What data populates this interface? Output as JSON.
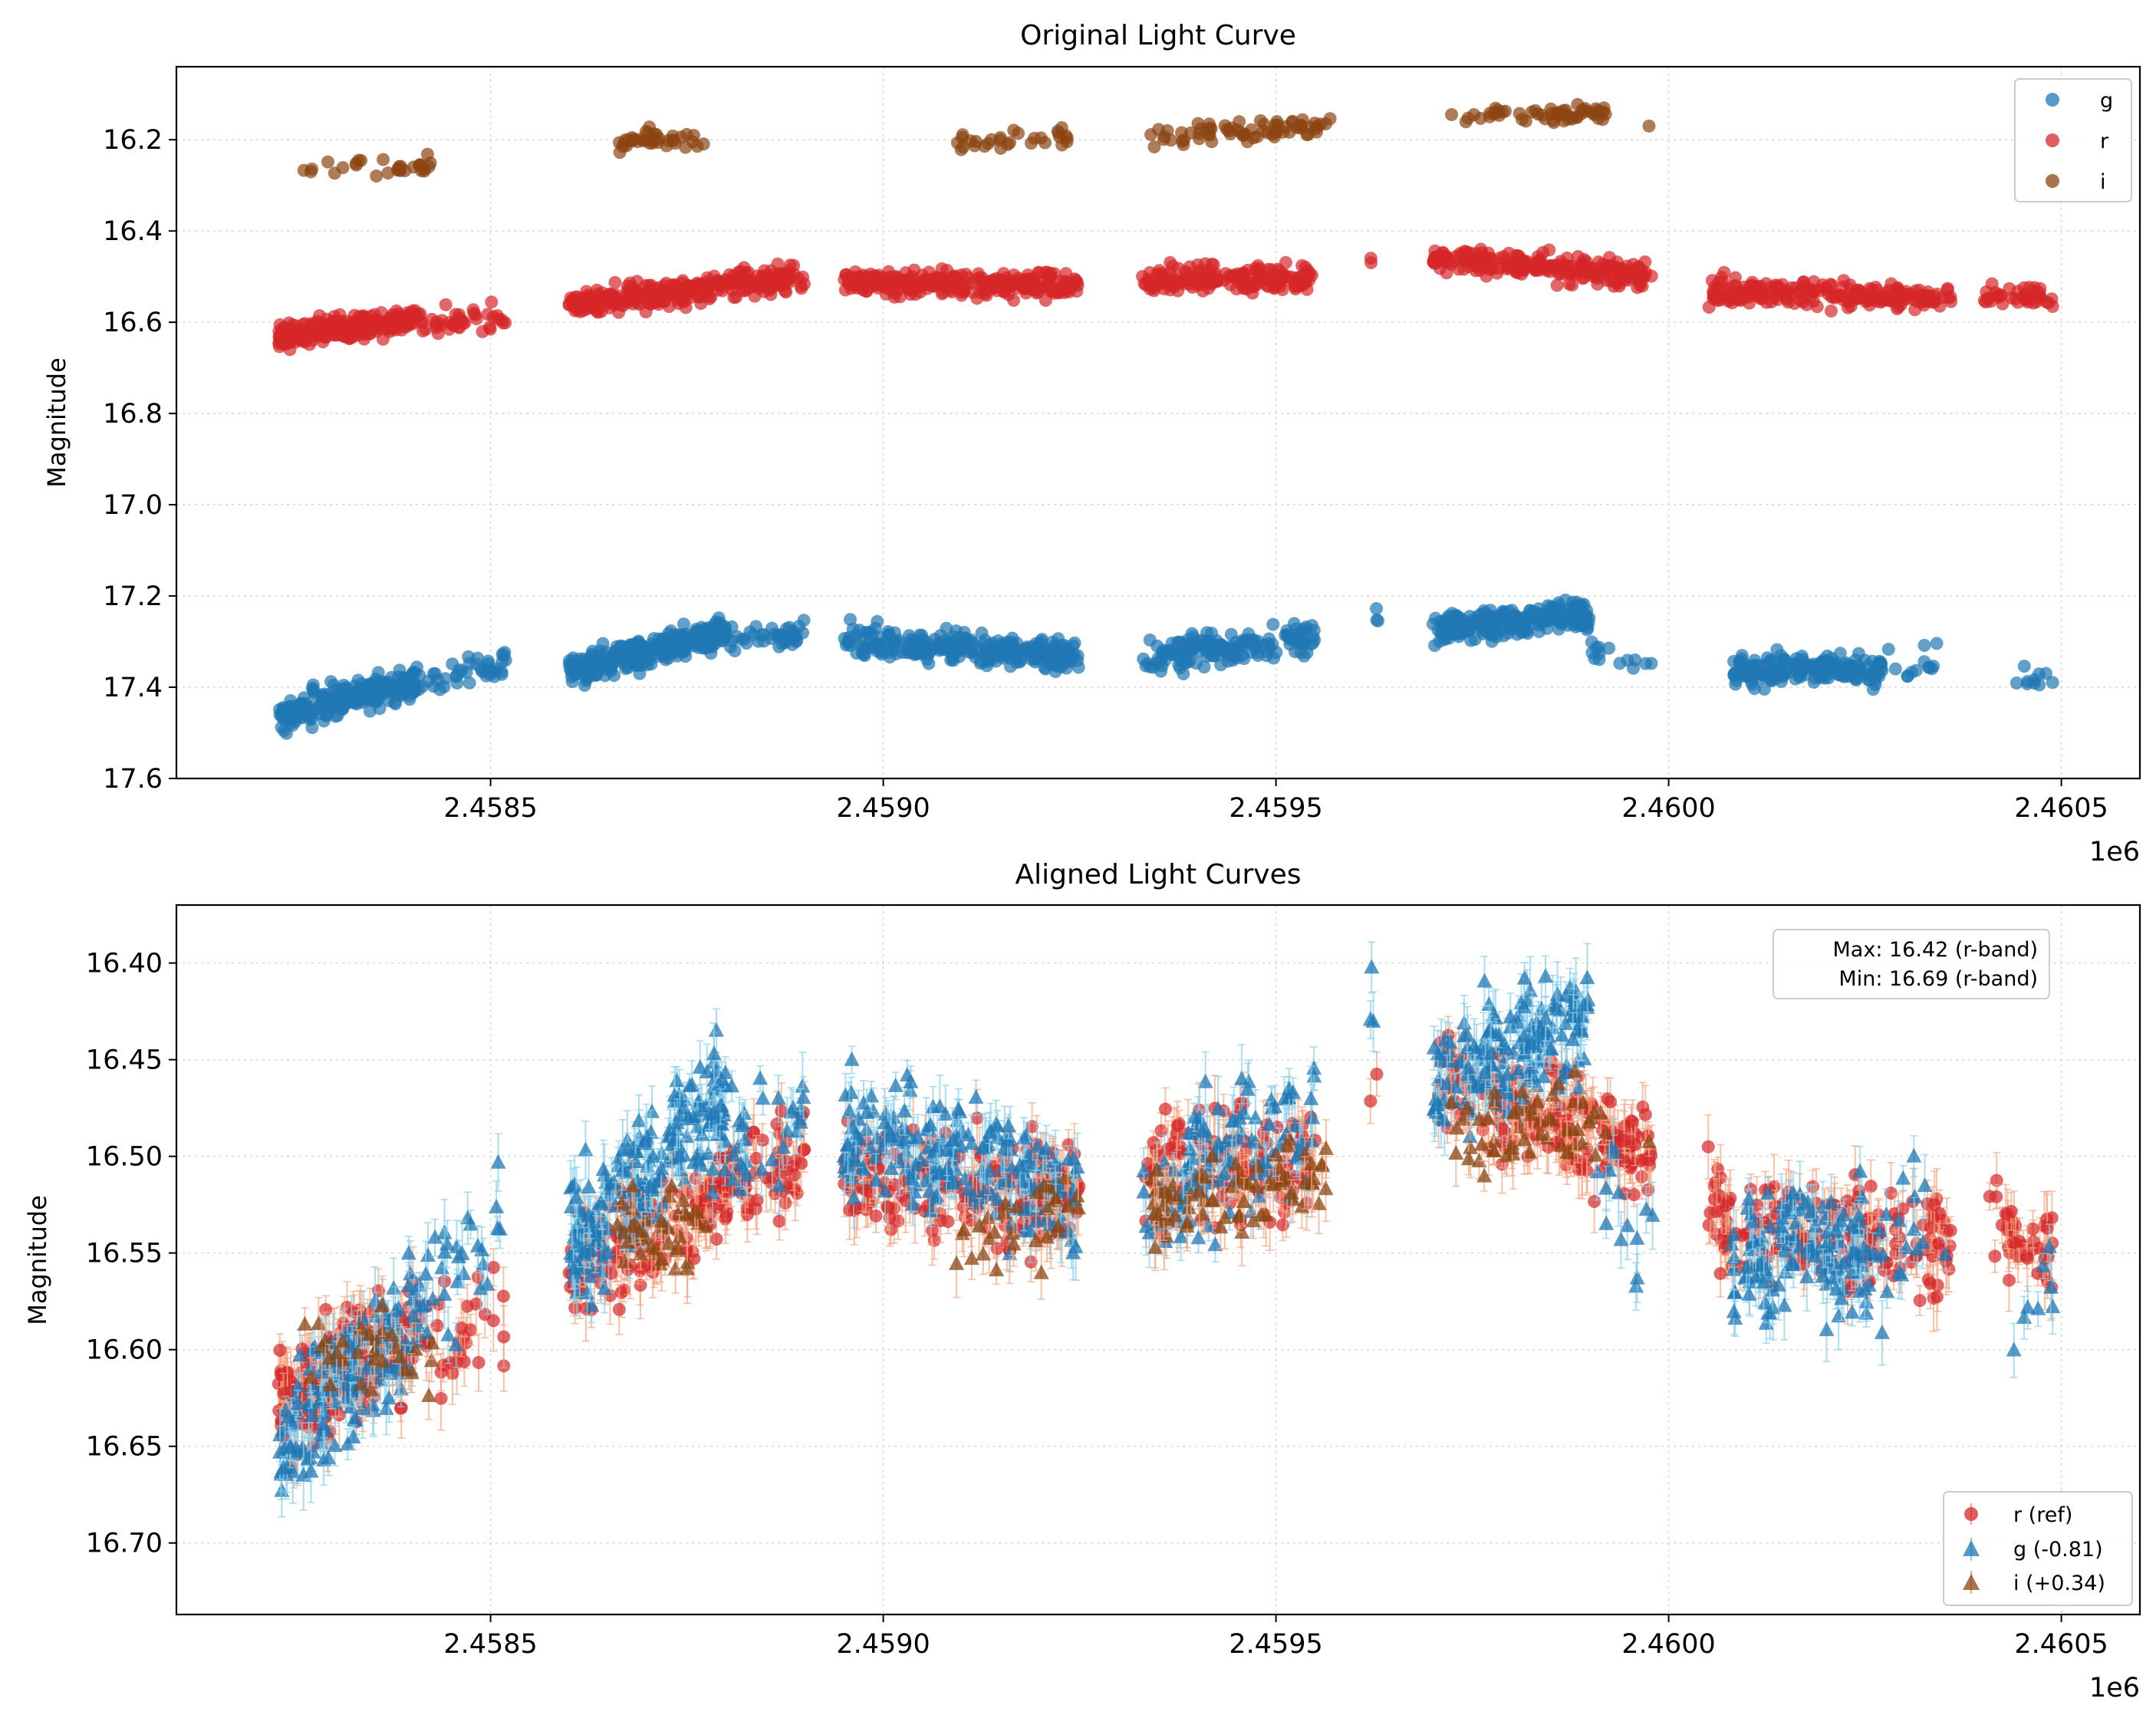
{
  "chart_data": [
    {
      "type": "scatter",
      "title": "Original Light Curve",
      "xlabel": "",
      "ylabel": "Magnitude",
      "x_offset_label": "1e6",
      "xlim": [
        2.4581,
        2.4606
      ],
      "ylim": [
        17.6,
        16.04
      ],
      "y_inverted": true,
      "grid": true,
      "xticks": [
        2.4585,
        2.459,
        2.4595,
        2.46,
        2.4605
      ],
      "xtick_labels": [
        "2.4585",
        "2.4590",
        "2.4595",
        "2.4600",
        "2.4605"
      ],
      "yticks": [
        16.2,
        16.4,
        16.6,
        16.8,
        17.0,
        17.2,
        17.4,
        17.6
      ],
      "ytick_labels": [
        "16.2",
        "16.4",
        "16.6",
        "16.8",
        "17.0",
        "17.2",
        "17.4",
        "17.6"
      ],
      "legend": {
        "position": "top-right",
        "entries": [
          {
            "label": "g",
            "color": "#1f77b4",
            "marker": "circle"
          },
          {
            "label": "r",
            "color": "#d62728",
            "marker": "circle"
          },
          {
            "label": "i",
            "color": "#8b4513",
            "marker": "circle"
          }
        ]
      },
      "series": [
        {
          "name": "g",
          "color": "#1f77b4",
          "errcolor": "#87ceeb",
          "marker": "circle",
          "mag_sd": 0.03,
          "segments": [
            {
              "x": [
                2.45823,
                2.45841
              ],
              "y": [
                17.46,
                17.39
              ],
              "n": 240
            },
            {
              "x": [
                2.45841,
                2.45852
              ],
              "y": [
                17.39,
                17.35
              ],
              "n": 40
            },
            {
              "x": [
                2.4586,
                2.4588
              ],
              "y": [
                17.36,
                17.28
              ],
              "n": 260
            },
            {
              "x": [
                2.4588,
                2.4589
              ],
              "y": [
                17.31,
                17.28
              ],
              "n": 40
            },
            {
              "x": [
                2.45895,
                2.45925
              ],
              "y": [
                17.3,
                17.33
              ],
              "n": 280
            },
            {
              "x": [
                2.45933,
                2.45955
              ],
              "y": [
                17.34,
                17.29
              ],
              "n": 160
            },
            {
              "x": [
                2.45962,
                2.45963
              ],
              "y": [
                17.24,
                17.24
              ],
              "n": 3
            },
            {
              "x": [
                2.4597,
                2.4599
              ],
              "y": [
                17.27,
                17.24
              ],
              "n": 220
            },
            {
              "x": [
                2.4599,
                2.45998
              ],
              "y": [
                17.32,
                17.36
              ],
              "n": 14
            },
            {
              "x": [
                2.46008,
                2.46028
              ],
              "y": [
                17.36,
                17.36
              ],
              "n": 200
            },
            {
              "x": [
                2.46028,
                2.46036
              ],
              "y": [
                17.36,
                17.33
              ],
              "n": 12
            },
            {
              "x": [
                2.46043,
                2.46049
              ],
              "y": [
                17.38,
                17.38
              ],
              "n": 10
            }
          ]
        },
        {
          "name": "r",
          "color": "#d62728",
          "errcolor": "#f4a582",
          "marker": "circle",
          "mag_sd": 0.025,
          "segments": [
            {
              "x": [
                2.45823,
                2.45841
              ],
              "y": [
                16.63,
                16.59
              ],
              "n": 240
            },
            {
              "x": [
                2.45841,
                2.45852
              ],
              "y": [
                16.6,
                16.59
              ],
              "n": 40
            },
            {
              "x": [
                2.4586,
                2.4589
              ],
              "y": [
                16.56,
                16.5
              ],
              "n": 300
            },
            {
              "x": [
                2.45895,
                2.45925
              ],
              "y": [
                16.51,
                16.52
              ],
              "n": 280
            },
            {
              "x": [
                2.45933,
                2.45955
              ],
              "y": [
                16.51,
                16.5
              ],
              "n": 170
            },
            {
              "x": [
                2.45962,
                2.45963
              ],
              "y": [
                16.47,
                16.47
              ],
              "n": 2
            },
            {
              "x": [
                2.4597,
                2.45998
              ],
              "y": [
                16.46,
                16.5
              ],
              "n": 230
            },
            {
              "x": [
                2.46005,
                2.46036
              ],
              "y": [
                16.53,
                16.55
              ],
              "n": 220
            },
            {
              "x": [
                2.4604,
                2.46049
              ],
              "y": [
                16.54,
                16.55
              ],
              "n": 40
            }
          ]
        },
        {
          "name": "i",
          "color": "#8b4513",
          "errcolor": "#f4a582",
          "marker": "circle",
          "mag_sd": 0.02,
          "segments": [
            {
              "x": [
                2.45826,
                2.45843
              ],
              "y": [
                16.26,
                16.26
              ],
              "n": 30
            },
            {
              "x": [
                2.45866,
                2.45878
              ],
              "y": [
                16.2,
                16.2
              ],
              "n": 40
            },
            {
              "x": [
                2.45909,
                2.45925
              ],
              "y": [
                16.21,
                16.19
              ],
              "n": 30
            },
            {
              "x": [
                2.45934,
                2.45957
              ],
              "y": [
                16.19,
                16.17
              ],
              "n": 70
            },
            {
              "x": [
                2.45972,
                2.45992
              ],
              "y": [
                16.15,
                16.14
              ],
              "n": 55
            },
            {
              "x": [
                2.45997,
                2.45998
              ],
              "y": [
                16.17,
                16.17
              ],
              "n": 1
            }
          ]
        }
      ]
    },
    {
      "type": "scatter",
      "title": "Aligned Light Curves",
      "xlabel": "",
      "ylabel": "Magnitude",
      "x_offset_label": "1e6",
      "xlim": [
        2.4581,
        2.4606
      ],
      "ylim": [
        16.737,
        16.37
      ],
      "y_inverted": true,
      "grid": true,
      "xticks": [
        2.4585,
        2.459,
        2.4595,
        2.46,
        2.4605
      ],
      "xtick_labels": [
        "2.4585",
        "2.4590",
        "2.4595",
        "2.4600",
        "2.4605"
      ],
      "yticks": [
        16.4,
        16.45,
        16.5,
        16.55,
        16.6,
        16.65,
        16.7
      ],
      "ytick_labels": [
        "16.40",
        "16.45",
        "16.50",
        "16.55",
        "16.60",
        "16.65",
        "16.70"
      ],
      "annotation": {
        "position": "top-right",
        "lines": [
          "Max: 16.42 (r-band)",
          "Min: 16.69 (r-band)"
        ]
      },
      "legend": {
        "position": "bottom-right",
        "entries": [
          {
            "label": "r (ref)",
            "color": "#d62728",
            "marker": "circle"
          },
          {
            "label": "g (-0.81)",
            "color": "#1f77b4",
            "marker": "triangle"
          },
          {
            "label": "i (+0.34)",
            "color": "#8b4513",
            "marker": "triangle"
          }
        ]
      },
      "series": [
        {
          "name": "r (ref)",
          "color": "#d62728",
          "errcolor": "#f4a582",
          "marker": "circle",
          "mag_sd": 0.025,
          "segments": [
            {
              "x": [
                2.45823,
                2.45841
              ],
              "y": [
                16.63,
                16.59
              ],
              "n": 200
            },
            {
              "x": [
                2.45841,
                2.45852
              ],
              "y": [
                16.6,
                16.59
              ],
              "n": 30
            },
            {
              "x": [
                2.4586,
                2.4589
              ],
              "y": [
                16.56,
                16.5
              ],
              "n": 200
            },
            {
              "x": [
                2.45895,
                2.45925
              ],
              "y": [
                16.51,
                16.52
              ],
              "n": 200
            },
            {
              "x": [
                2.45933,
                2.45955
              ],
              "y": [
                16.51,
                16.5
              ],
              "n": 140
            },
            {
              "x": [
                2.45962,
                2.45963
              ],
              "y": [
                16.46,
                16.46
              ],
              "n": 2
            },
            {
              "x": [
                2.4597,
                2.45998
              ],
              "y": [
                16.46,
                16.5
              ],
              "n": 180
            },
            {
              "x": [
                2.46005,
                2.46036
              ],
              "y": [
                16.53,
                16.55
              ],
              "n": 180
            },
            {
              "x": [
                2.4604,
                2.46049
              ],
              "y": [
                16.54,
                16.55
              ],
              "n": 40
            }
          ]
        },
        {
          "name": "g (-0.81)",
          "color": "#1f77b4",
          "errcolor": "#87ceeb",
          "marker": "triangle",
          "mag_sd": 0.03,
          "segments": [
            {
              "x": [
                2.45823,
                2.45841
              ],
              "y": [
                16.65,
                16.58
              ],
              "n": 160
            },
            {
              "x": [
                2.45841,
                2.45852
              ],
              "y": [
                16.58,
                16.54
              ],
              "n": 30
            },
            {
              "x": [
                2.4586,
                2.4588
              ],
              "y": [
                16.55,
                16.47
              ],
              "n": 200
            },
            {
              "x": [
                2.4588,
                2.4589
              ],
              "y": [
                16.5,
                16.47
              ],
              "n": 30
            },
            {
              "x": [
                2.45895,
                2.45925
              ],
              "y": [
                16.49,
                16.52
              ],
              "n": 200
            },
            {
              "x": [
                2.45933,
                2.45955
              ],
              "y": [
                16.53,
                16.48
              ],
              "n": 120
            },
            {
              "x": [
                2.45962,
                2.45963
              ],
              "y": [
                16.43,
                16.43
              ],
              "n": 3
            },
            {
              "x": [
                2.4597,
                2.4599
              ],
              "y": [
                16.46,
                16.43
              ],
              "n": 160
            },
            {
              "x": [
                2.4599,
                2.45998
              ],
              "y": [
                16.51,
                16.55
              ],
              "n": 14
            },
            {
              "x": [
                2.46008,
                2.46028
              ],
              "y": [
                16.55,
                16.55
              ],
              "n": 140
            },
            {
              "x": [
                2.46028,
                2.46036
              ],
              "y": [
                16.55,
                16.52
              ],
              "n": 12
            },
            {
              "x": [
                2.46043,
                2.46049
              ],
              "y": [
                16.57,
                16.57
              ],
              "n": 8
            }
          ]
        },
        {
          "name": "i (+0.34)",
          "color": "#8b4513",
          "errcolor": "#f4a582",
          "marker": "triangle",
          "mag_sd": 0.02,
          "segments": [
            {
              "x": [
                2.45826,
                2.45843
              ],
              "y": [
                16.6,
                16.6
              ],
              "n": 30
            },
            {
              "x": [
                2.45866,
                2.45878
              ],
              "y": [
                16.54,
                16.54
              ],
              "n": 40
            },
            {
              "x": [
                2.45909,
                2.45925
              ],
              "y": [
                16.55,
                16.53
              ],
              "n": 30
            },
            {
              "x": [
                2.45934,
                2.45957
              ],
              "y": [
                16.53,
                16.51
              ],
              "n": 70
            },
            {
              "x": [
                2.45972,
                2.45992
              ],
              "y": [
                16.49,
                16.48
              ],
              "n": 55
            },
            {
              "x": [
                2.45997,
                2.45998
              ],
              "y": [
                16.51,
                16.51
              ],
              "n": 1
            }
          ]
        }
      ]
    }
  ]
}
